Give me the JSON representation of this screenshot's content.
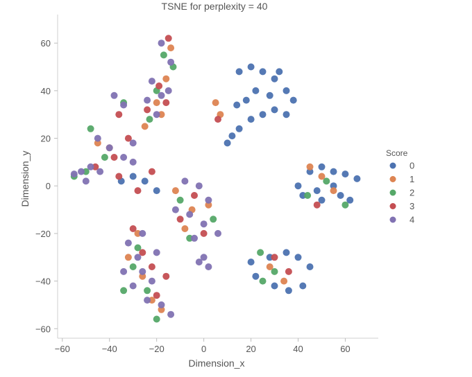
{
  "chart_data": {
    "type": "scatter",
    "title": "TSNE for perplexity = 40",
    "xlabel": "Dimension_x",
    "ylabel": "Dimension_y",
    "xlim": [
      -62,
      74
    ],
    "ylim": [
      -64,
      72
    ],
    "xticks": [
      -60,
      -40,
      -20,
      0,
      20,
      40,
      60
    ],
    "yticks": [
      60,
      40,
      20,
      0,
      -20,
      -40,
      -60
    ],
    "xtick_labels": [
      "−60",
      "−40",
      "−20",
      "0",
      "20",
      "40",
      "60"
    ],
    "ytick_labels": [
      "60",
      "40",
      "20",
      "0",
      "−20",
      "−40",
      "−60"
    ],
    "grid": false,
    "legend": {
      "title": "Score",
      "position": "right",
      "entries": [
        {
          "label": "0",
          "color": "#4c72b0"
        },
        {
          "label": "1",
          "color": "#dd8452"
        },
        {
          "label": "2",
          "color": "#55a868"
        },
        {
          "label": "3",
          "color": "#c44e52"
        },
        {
          "label": "4",
          "color": "#8172b2"
        }
      ]
    },
    "point_groups": [
      {
        "series": "0",
        "points": [
          [
            15,
            48
          ],
          [
            20,
            50
          ],
          [
            25,
            48
          ],
          [
            30,
            45
          ],
          [
            35,
            40
          ],
          [
            28,
            38
          ],
          [
            22,
            40
          ],
          [
            18,
            36
          ],
          [
            30,
            32
          ],
          [
            25,
            30
          ],
          [
            20,
            28
          ],
          [
            15,
            24
          ],
          [
            12,
            21
          ],
          [
            10,
            18
          ],
          [
            14,
            34
          ],
          [
            32,
            48
          ],
          [
            38,
            36
          ],
          [
            35,
            30
          ],
          [
            45,
            6
          ],
          [
            50,
            8
          ],
          [
            55,
            6
          ],
          [
            60,
            5
          ],
          [
            65,
            3
          ],
          [
            55,
            0
          ],
          [
            48,
            -2
          ],
          [
            42,
            -4
          ],
          [
            50,
            -6
          ],
          [
            58,
            -4
          ],
          [
            62,
            -6
          ],
          [
            40,
            0
          ],
          [
            35,
            -28
          ],
          [
            40,
            -30
          ],
          [
            45,
            -34
          ],
          [
            42,
            -42
          ],
          [
            36,
            -44
          ],
          [
            30,
            -42
          ],
          [
            22,
            -38
          ],
          [
            20,
            -32
          ],
          [
            28,
            -30
          ],
          [
            -30,
            4
          ],
          [
            -25,
            2
          ],
          [
            -20,
            -2
          ],
          [
            -35,
            2
          ]
        ]
      },
      {
        "series": "1",
        "points": [
          [
            -14,
            58
          ],
          [
            -16,
            45
          ],
          [
            -18,
            30
          ],
          [
            -20,
            35
          ],
          [
            -25,
            25
          ],
          [
            5,
            35
          ],
          [
            7,
            30
          ],
          [
            45,
            8
          ],
          [
            50,
            4
          ],
          [
            55,
            -2
          ],
          [
            28,
            -34
          ],
          [
            34,
            -40
          ],
          [
            -28,
            -20
          ],
          [
            -32,
            -30
          ],
          [
            -26,
            -38
          ],
          [
            -22,
            -48
          ],
          [
            -18,
            -52
          ],
          [
            -5,
            -10
          ],
          [
            2,
            -8
          ],
          [
            -8,
            -18
          ],
          [
            -12,
            -2
          ],
          [
            -40,
            16
          ],
          [
            -45,
            18
          ]
        ]
      },
      {
        "series": "2",
        "points": [
          [
            -17,
            55
          ],
          [
            -13,
            50
          ],
          [
            -20,
            40
          ],
          [
            -23,
            28
          ],
          [
            -34,
            35
          ],
          [
            -48,
            24
          ],
          [
            -42,
            12
          ],
          [
            52,
            2
          ],
          [
            44,
            -4
          ],
          [
            60,
            -8
          ],
          [
            24,
            -28
          ],
          [
            30,
            -36
          ],
          [
            25,
            -40
          ],
          [
            -30,
            -34
          ],
          [
            -34,
            -44
          ],
          [
            -24,
            -44
          ],
          [
            -20,
            -56
          ],
          [
            -28,
            -26
          ],
          [
            -6,
            -22
          ],
          [
            4,
            -14
          ],
          [
            -10,
            -6
          ],
          [
            -50,
            6
          ],
          [
            -55,
            4
          ]
        ]
      },
      {
        "series": "3",
        "points": [
          [
            -15,
            62
          ],
          [
            -19,
            42
          ],
          [
            -16,
            35
          ],
          [
            -24,
            32
          ],
          [
            -36,
            30
          ],
          [
            -32,
            20
          ],
          [
            -38,
            12
          ],
          [
            6,
            28
          ],
          [
            48,
            -8
          ],
          [
            30,
            -30
          ],
          [
            36,
            -36
          ],
          [
            -26,
            -28
          ],
          [
            -30,
            -18
          ],
          [
            -22,
            -34
          ],
          [
            -20,
            -46
          ],
          [
            -16,
            -38
          ],
          [
            -4,
            -4
          ],
          [
            0,
            -20
          ],
          [
            -10,
            -14
          ],
          [
            -46,
            8
          ],
          [
            -36,
            4
          ],
          [
            -22,
            6
          ],
          [
            -28,
            -2
          ]
        ]
      },
      {
        "series": "4",
        "points": [
          [
            -18,
            60
          ],
          [
            -14,
            52
          ],
          [
            -22,
            44
          ],
          [
            -18,
            38
          ],
          [
            -24,
            36
          ],
          [
            -20,
            30
          ],
          [
            -15,
            40
          ],
          [
            -38,
            38
          ],
          [
            -34,
            34
          ],
          [
            -45,
            20
          ],
          [
            -40,
            16
          ],
          [
            -30,
            18
          ],
          [
            -34,
            12
          ],
          [
            -30,
            10
          ],
          [
            -52,
            6
          ],
          [
            -50,
            2
          ],
          [
            -55,
            5
          ],
          [
            -48,
            8
          ],
          [
            -44,
            6
          ],
          [
            -26,
            -20
          ],
          [
            -32,
            -24
          ],
          [
            -28,
            -30
          ],
          [
            -34,
            -36
          ],
          [
            -26,
            -36
          ],
          [
            -30,
            -42
          ],
          [
            -22,
            -40
          ],
          [
            -24,
            -48
          ],
          [
            -18,
            -50
          ],
          [
            -14,
            -54
          ],
          [
            -20,
            -28
          ],
          [
            -8,
            2
          ],
          [
            -2,
            0
          ],
          [
            2,
            -6
          ],
          [
            -6,
            -12
          ],
          [
            0,
            -16
          ],
          [
            -12,
            -10
          ],
          [
            -4,
            -22
          ],
          [
            6,
            -20
          ],
          [
            -2,
            -32
          ],
          [
            0,
            -30
          ],
          [
            2,
            -34
          ]
        ]
      }
    ]
  }
}
